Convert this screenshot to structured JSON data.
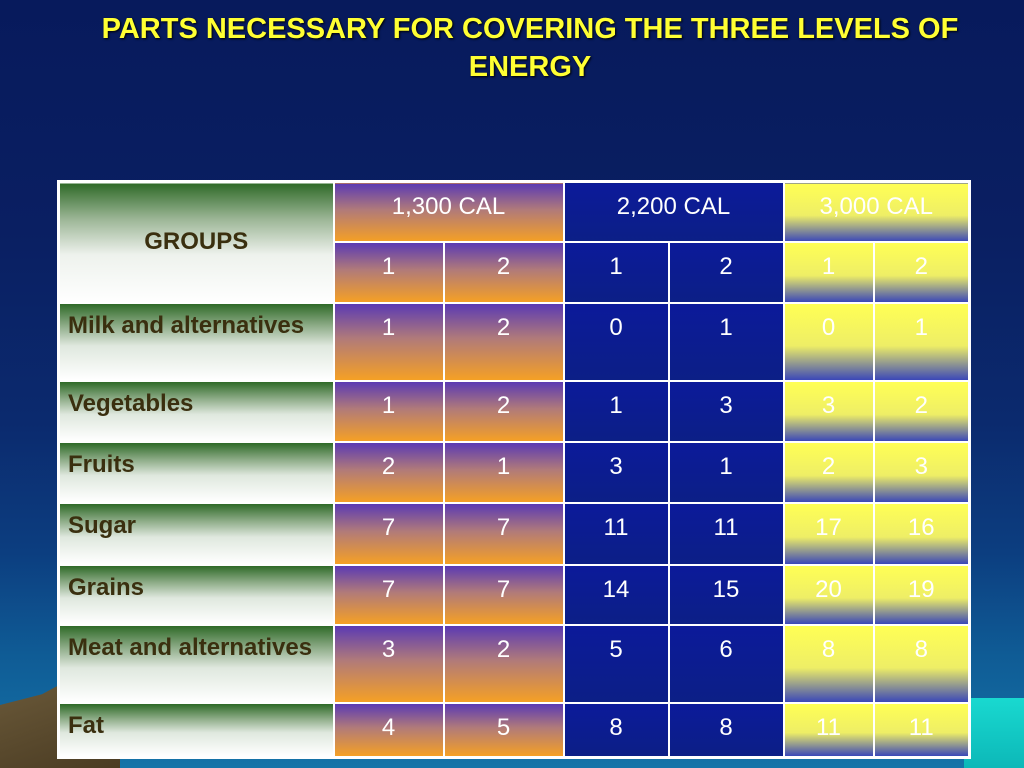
{
  "title": "PARTS NECESSARY FOR COVERING THE THREE LEVELS OF ENERGY",
  "table": {
    "groups_header": "GROUPS",
    "levels": [
      "1,300 CAL",
      "2,200 CAL",
      "3,000 CAL"
    ],
    "sub_headers": [
      "1",
      "2",
      "1",
      "2",
      "1",
      "2"
    ],
    "rows": [
      {
        "group": "Milk and alternatives",
        "values": [
          "1",
          "2",
          "0",
          "1",
          "0",
          "1"
        ]
      },
      {
        "group": "Vegetables",
        "values": [
          "1",
          "2",
          "1",
          "3",
          "3",
          "2"
        ]
      },
      {
        "group": "Fruits",
        "values": [
          "2",
          "1",
          "3",
          "1",
          "2",
          "3"
        ]
      },
      {
        "group": "Sugar",
        "values": [
          "7",
          "7",
          "11",
          "11",
          "17",
          "16"
        ]
      },
      {
        "group": "Grains",
        "values": [
          "7",
          "7",
          "14",
          "15",
          "20",
          "19"
        ]
      },
      {
        "group": "Meat and alternatives",
        "values": [
          "3",
          "2",
          "5",
          "6",
          "8",
          "8"
        ]
      },
      {
        "group": "Fat",
        "values": [
          "4",
          "5",
          "8",
          "8",
          "11",
          "11"
        ]
      }
    ]
  }
}
